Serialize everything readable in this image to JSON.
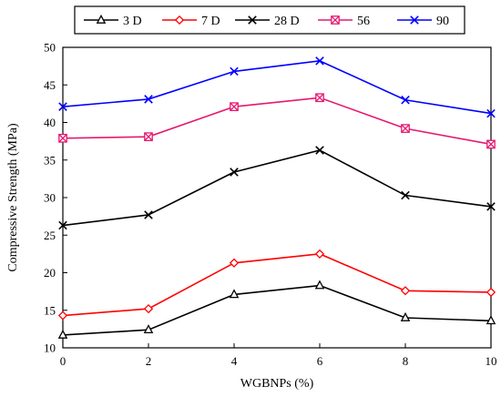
{
  "chart_data": {
    "type": "line",
    "title": "",
    "xlabel": "WGBNPs (%)",
    "ylabel": "Compressive Strength (MPa)",
    "x": [
      0,
      2,
      4,
      6,
      8,
      10
    ],
    "xlim": [
      0,
      10
    ],
    "ylim": [
      10,
      50
    ],
    "xticks": [
      "0",
      "2",
      "4",
      "6",
      "8",
      "10"
    ],
    "yticks": [
      "10",
      "15",
      "20",
      "25",
      "30",
      "35",
      "40",
      "45",
      "50"
    ],
    "grid": false,
    "legend_position": "top",
    "series": [
      {
        "name": "3 D",
        "color": "#000000",
        "marker": "triangle",
        "values": [
          11.7,
          12.4,
          17.1,
          18.3,
          14.0,
          13.6
        ]
      },
      {
        "name": "7 D",
        "color": "#ff0000",
        "marker": "diamond",
        "values": [
          14.3,
          15.2,
          21.3,
          22.5,
          17.6,
          17.4
        ]
      },
      {
        "name": "28 D",
        "color": "#000000",
        "marker": "x",
        "values": [
          26.3,
          27.7,
          33.4,
          36.3,
          30.3,
          28.8
        ]
      },
      {
        "name": "56",
        "color": "#e6186f",
        "marker": "box-x",
        "values": [
          37.9,
          38.1,
          42.1,
          43.3,
          39.2,
          37.1
        ]
      },
      {
        "name": "90",
        "color": "#0000ff",
        "marker": "x",
        "values": [
          42.1,
          43.1,
          46.8,
          48.2,
          43.0,
          41.2
        ]
      }
    ]
  }
}
